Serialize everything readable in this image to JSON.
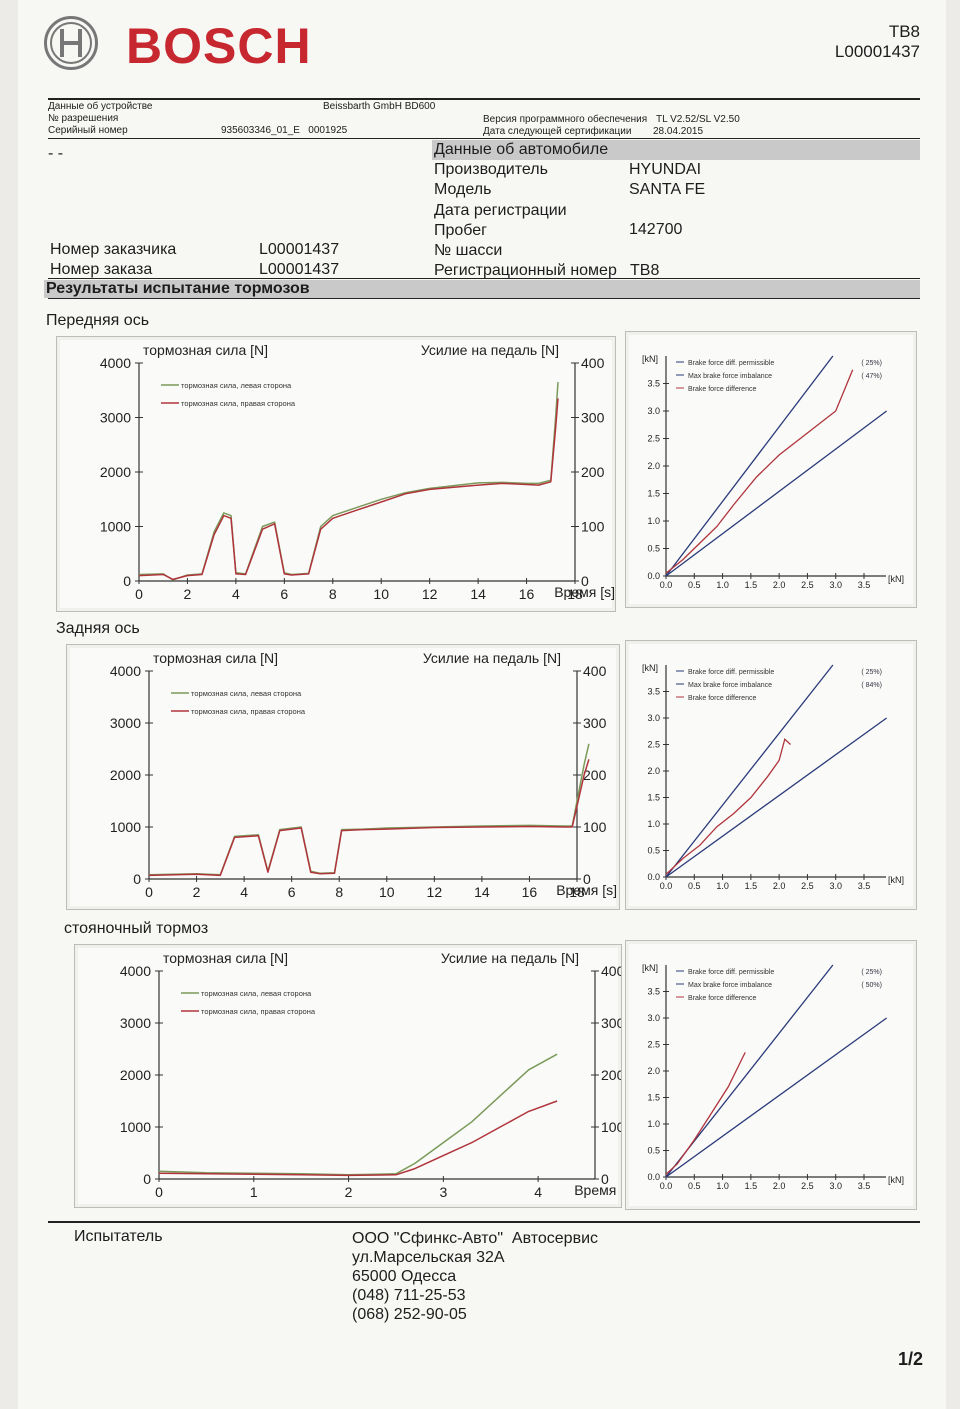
{
  "header": {
    "brand": "BOSCH",
    "code": "TB8",
    "number": "L00001437"
  },
  "device": {
    "label": "Данные об устройстве",
    "value": "Beissbarth GmbH BD600",
    "permit_label": "№ разрешения",
    "serial_label": "Серийный номер",
    "serial_value": "935603346_01_E   0001925",
    "software_label": "Версия программного обеспечения",
    "software_value": "TL V2.52/SL V2.50",
    "cert_label": "Дата следующей сертификации",
    "cert_value": "28.04.2015"
  },
  "vehicle": {
    "dash": "- -",
    "title": "Данные об автомобиле",
    "make_label": "Производитель",
    "make_value": "HYUNDAI",
    "model_label": "Модель",
    "model_value": "SANTA FE",
    "reg_date_label": "Дата регистрации",
    "mileage_label": "Пробег",
    "mileage_value": "142700",
    "chassis_label": "№ шасси",
    "plate_label": "Регистрационный номер",
    "plate_value": "TB8"
  },
  "customer": {
    "customer_label": "Номер заказчика",
    "customer_value": "L00001437",
    "order_label": "Номер заказа",
    "order_value": "L00001437"
  },
  "results_title": "Результаты испытание тормозов",
  "sections": [
    {
      "title": "Передняя ось"
    },
    {
      "title": "Задняя ось"
    },
    {
      "title": "стояночный тормоз"
    }
  ],
  "footer": {
    "tester_label": "Испытатель",
    "company": "ООО \"Сфинкс-Авто\"  Автосервис",
    "street": "ул.Марсельская 32А",
    "city": "65000 Одесса",
    "phone1": "(048) 711-25-53",
    "phone2": "(068) 252-90-05",
    "page": "1/2"
  },
  "colors": {
    "left_side": "#7a9a5a",
    "right_side": "#b0343c",
    "diag_lines": "#2a3a7a"
  },
  "chart_data": [
    {
      "type": "line",
      "title": "тормозная сила [N]",
      "y2label": "Усилие на педаль [N]",
      "xlabel": "Время [s]",
      "xlim": [
        0,
        18
      ],
      "xticks": [
        0,
        2,
        4,
        6,
        8,
        10,
        12,
        14,
        16,
        18
      ],
      "ylim": [
        0,
        4000
      ],
      "yticks": [
        0,
        1000,
        2000,
        3000,
        4000
      ],
      "y2lim": [
        0,
        400
      ],
      "y2ticks": [
        0,
        100,
        200,
        300,
        400
      ],
      "series": [
        {
          "name": "тормозная сила, левая сторона",
          "color": "#7a9a5a",
          "x": [
            0,
            1,
            1.4,
            2,
            2.6,
            3.1,
            3.5,
            3.8,
            4.0,
            4.4,
            5.1,
            5.6,
            6.0,
            6.3,
            7.0,
            7.5,
            8,
            9,
            10,
            11,
            12,
            13,
            14,
            15,
            16,
            16.5,
            17,
            17.2,
            17.3
          ],
          "y": [
            120,
            130,
            20,
            110,
            130,
            900,
            1250,
            1200,
            150,
            130,
            1000,
            1080,
            150,
            120,
            140,
            1000,
            1200,
            1350,
            1500,
            1620,
            1700,
            1750,
            1800,
            1810,
            1790,
            1790,
            1850,
            3000,
            3650
          ]
        },
        {
          "name": "тормозная сила, правая сторона",
          "color": "#b0343c",
          "x": [
            0,
            1,
            1.4,
            2,
            2.6,
            3.1,
            3.5,
            3.8,
            4.0,
            4.4,
            5.1,
            5.6,
            6.0,
            6.3,
            7.0,
            7.5,
            8,
            9,
            10,
            11,
            12,
            13,
            14,
            15,
            16,
            16.5,
            17,
            17.2,
            17.3
          ],
          "y": [
            100,
            120,
            30,
            100,
            120,
            850,
            1200,
            1150,
            130,
            120,
            950,
            1050,
            130,
            110,
            130,
            950,
            1150,
            1300,
            1450,
            1600,
            1680,
            1720,
            1760,
            1790,
            1770,
            1760,
            1820,
            2800,
            3350
          ]
        }
      ]
    },
    {
      "type": "line",
      "ylabel": "[kN]",
      "xlabel": "[kN]",
      "xlim": [
        0,
        3.5
      ],
      "ylim": [
        0,
        4.0
      ],
      "xticks": [
        0,
        0.5,
        1.0,
        1.5,
        2.0,
        2.5,
        3.0,
        3.5
      ],
      "yticks": [
        0,
        0.5,
        1.0,
        1.5,
        2.0,
        2.5,
        3.0,
        3.5
      ],
      "legend": [
        "Brake force diff. permissible",
        "Max brake force imbalance",
        "Brake force difference"
      ],
      "annotations": [
        "( 25%)",
        "( 47%)"
      ],
      "series": [
        {
          "name": "Brake force difference",
          "color": "#b0343c",
          "x": [
            0,
            0.3,
            0.6,
            0.9,
            1.2,
            1.6,
            2.0,
            2.5,
            3.0,
            3.3
          ],
          "y": [
            0.05,
            0.3,
            0.6,
            0.9,
            1.3,
            1.8,
            2.2,
            2.6,
            3.0,
            3.75
          ]
        }
      ]
    },
    {
      "type": "line",
      "title": "тормозная сила [N]",
      "y2label": "Усилие на педаль [N]",
      "xlabel": "Время [s]",
      "xlim": [
        0,
        18
      ],
      "xticks": [
        0,
        2,
        4,
        6,
        8,
        10,
        12,
        14,
        16,
        18
      ],
      "ylim": [
        0,
        4000
      ],
      "yticks": [
        0,
        1000,
        2000,
        3000,
        4000
      ],
      "y2lim": [
        0,
        400
      ],
      "y2ticks": [
        0,
        100,
        200,
        300,
        400
      ],
      "series": [
        {
          "name": "тормозная сила, левая сторона",
          "color": "#7a9a5a",
          "x": [
            0,
            2,
            3,
            3.6,
            4.6,
            5,
            5.5,
            6.4,
            6.8,
            7.2,
            7.8,
            8.1,
            9,
            10,
            12,
            14,
            16,
            17.5,
            17.8,
            18,
            18.3,
            18.5
          ],
          "y": [
            80,
            100,
            80,
            820,
            850,
            150,
            950,
            1000,
            150,
            110,
            120,
            950,
            960,
            980,
            1000,
            1020,
            1030,
            1020,
            1020,
            1500,
            2200,
            2600
          ]
        },
        {
          "name": "тормозная сила, правая сторона",
          "color": "#b0343c",
          "x": [
            0,
            2,
            3,
            3.6,
            4.6,
            5,
            5.5,
            6.4,
            6.8,
            7.2,
            7.8,
            8.1,
            9,
            10,
            12,
            14,
            16,
            17.5,
            17.8,
            18,
            18.3,
            18.5
          ],
          "y": [
            70,
            90,
            70,
            800,
            830,
            130,
            930,
            980,
            130,
            100,
            110,
            930,
            950,
            960,
            990,
            1000,
            1010,
            1000,
            1000,
            1400,
            2000,
            2300
          ]
        }
      ]
    },
    {
      "type": "line",
      "ylabel": "[kN]",
      "xlabel": "[kN]",
      "xlim": [
        0,
        3.5
      ],
      "ylim": [
        0,
        4.0
      ],
      "xticks": [
        0,
        0.5,
        1.0,
        1.5,
        2.0,
        2.5,
        3.0,
        3.5
      ],
      "yticks": [
        0,
        0.5,
        1.0,
        1.5,
        2.0,
        2.5,
        3.0,
        3.5
      ],
      "legend": [
        "Brake force diff. permissible",
        "Max brake force imbalance",
        "Brake force difference"
      ],
      "annotations": [
        "( 25%)",
        "( 84%)"
      ],
      "series": [
        {
          "name": "Brake force difference",
          "color": "#b0343c",
          "x": [
            0,
            0.3,
            0.6,
            0.9,
            1.2,
            1.5,
            1.8,
            2.0,
            2.1,
            2.2
          ],
          "y": [
            0.05,
            0.35,
            0.6,
            0.95,
            1.2,
            1.5,
            1.9,
            2.2,
            2.6,
            2.5
          ]
        }
      ]
    },
    {
      "type": "line",
      "title": "тормозная сила [N]",
      "y2label": "Усилие на педаль [N]",
      "xlabel": "Время [s]",
      "xlim": [
        0,
        4.6
      ],
      "xticks": [
        0,
        1,
        2,
        3,
        4
      ],
      "ylim": [
        0,
        4000
      ],
      "yticks": [
        0,
        1000,
        2000,
        3000,
        4000
      ],
      "y2lim": [
        0,
        400
      ],
      "y2ticks": [
        0,
        100,
        200,
        300,
        400
      ],
      "series": [
        {
          "name": "тормозная сила, левая сторона",
          "color": "#7a9a5a",
          "x": [
            0,
            0.5,
            1,
            1.5,
            2,
            2.5,
            2.7,
            3,
            3.3,
            3.6,
            3.9,
            4.2
          ],
          "y": [
            150,
            120,
            110,
            100,
            80,
            100,
            300,
            700,
            1100,
            1600,
            2100,
            2400
          ]
        },
        {
          "name": "тормозная сила, правая сторона",
          "color": "#b0343c",
          "x": [
            0,
            0.5,
            1,
            1.5,
            2,
            2.5,
            2.7,
            3,
            3.3,
            3.6,
            3.9,
            4.2
          ],
          "y": [
            110,
            100,
            90,
            80,
            70,
            80,
            200,
            450,
            700,
            1000,
            1300,
            1500
          ]
        }
      ]
    },
    {
      "type": "line",
      "ylabel": "[kN]",
      "xlabel": "[kN]",
      "xlim": [
        0,
        3.5
      ],
      "ylim": [
        0,
        4.0
      ],
      "xticks": [
        0,
        0.5,
        1.0,
        1.5,
        2.0,
        2.5,
        3.0,
        3.5
      ],
      "yticks": [
        0,
        0.5,
        1.0,
        1.5,
        2.0,
        2.5,
        3.0,
        3.5
      ],
      "legend": [
        "Brake force diff. permissible",
        "Max brake force imbalance",
        "Brake force difference"
      ],
      "annotations": [
        "( 25%)",
        "( 50%)"
      ],
      "series": [
        {
          "name": "Brake force difference",
          "color": "#b0343c",
          "x": [
            0,
            0.2,
            0.5,
            0.8,
            1.1,
            1.4
          ],
          "y": [
            0.05,
            0.25,
            0.7,
            1.2,
            1.7,
            2.35
          ]
        }
      ]
    }
  ]
}
